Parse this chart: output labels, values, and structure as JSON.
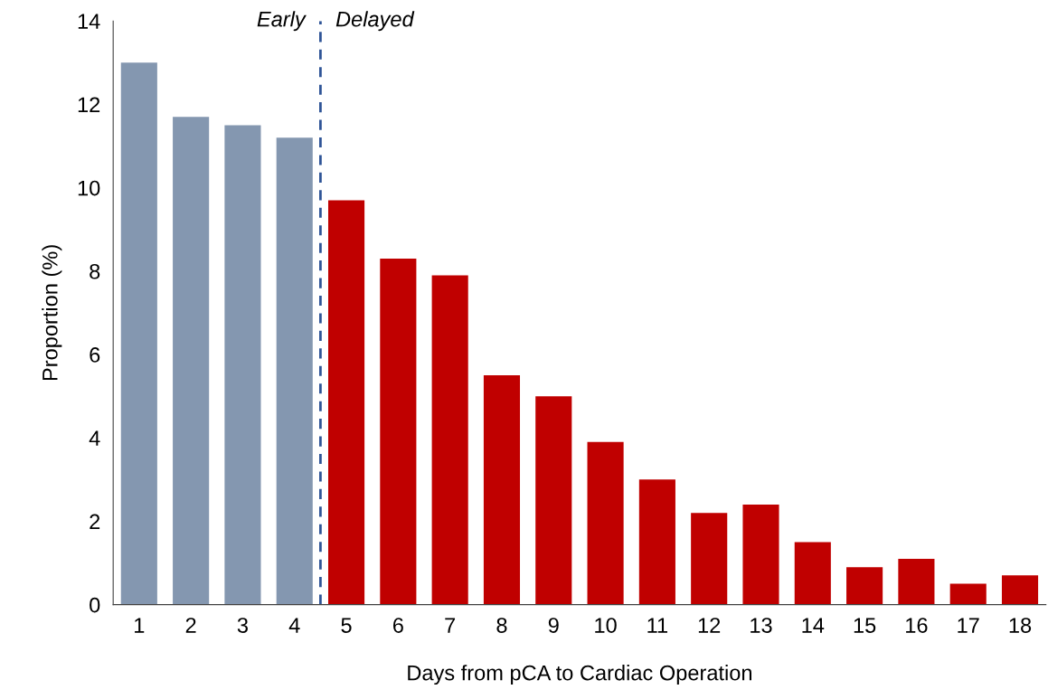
{
  "chart_data": {
    "type": "bar",
    "xlabel": "Days from pCA to Cardiac Operation",
    "ylabel": "Proportion (%)",
    "x": [
      1,
      2,
      3,
      4,
      5,
      6,
      7,
      8,
      9,
      10,
      11,
      12,
      13,
      14,
      15,
      16,
      17,
      18
    ],
    "values": [
      13.0,
      11.7,
      11.5,
      11.2,
      9.7,
      8.3,
      7.9,
      5.5,
      5.0,
      3.9,
      3.0,
      2.2,
      2.4,
      1.5,
      0.9,
      1.1,
      0.5,
      0.7
    ],
    "colors": [
      "#8497b0",
      "#8497b0",
      "#8497b0",
      "#8497b0",
      "#c00000",
      "#c00000",
      "#c00000",
      "#c00000",
      "#c00000",
      "#c00000",
      "#c00000",
      "#c00000",
      "#c00000",
      "#c00000",
      "#c00000",
      "#c00000",
      "#c00000",
      "#c00000"
    ],
    "xlim": [
      0.5,
      18.5
    ],
    "xticks": [
      1,
      2,
      3,
      4,
      5,
      6,
      7,
      8,
      9,
      10,
      11,
      12,
      13,
      14,
      15,
      16,
      17,
      18
    ],
    "ylim": [
      0,
      14
    ],
    "yticks": [
      0,
      2,
      4,
      6,
      8,
      10,
      12,
      14
    ],
    "ref_lines": [
      {
        "axis": "x",
        "value": 4.5,
        "color": "#2f5597",
        "line_style": "dashed"
      }
    ],
    "annotations": [
      {
        "text": "Early",
        "x": 4.5,
        "y": 14
      },
      {
        "text": "Delayed",
        "x": 4.5,
        "y": 14
      }
    ],
    "grid": false,
    "legend": false
  }
}
